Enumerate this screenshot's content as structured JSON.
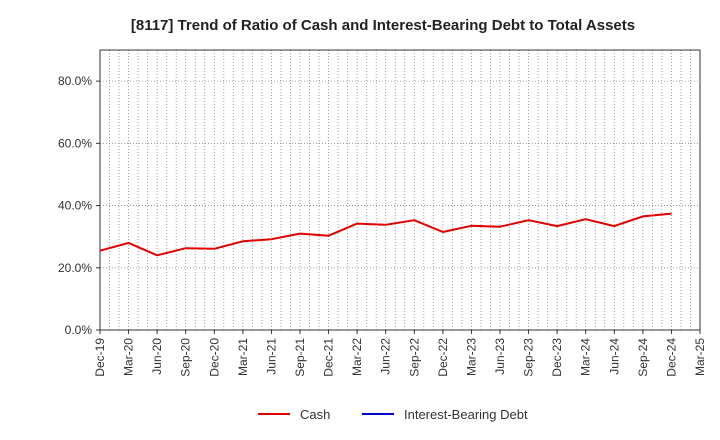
{
  "chart_data": {
    "type": "line",
    "title": "[8117]  Trend of Ratio of Cash and Interest-Bearing Debt to Total Assets",
    "xlabel": "",
    "ylabel": "",
    "ylim": [
      0,
      90
    ],
    "yticks": [
      0,
      20,
      40,
      60,
      80
    ],
    "ytick_labels": [
      "0.0%",
      "20.0%",
      "40.0%",
      "60.0%",
      "80.0%"
    ],
    "categories": [
      "Dec-19",
      "Mar-20",
      "Jun-20",
      "Sep-20",
      "Dec-20",
      "Mar-21",
      "Jun-21",
      "Sep-21",
      "Dec-21",
      "Mar-22",
      "Jun-22",
      "Sep-22",
      "Dec-22",
      "Mar-23",
      "Jun-23",
      "Sep-23",
      "Dec-23",
      "Mar-24",
      "Jun-24",
      "Sep-24",
      "Dec-24",
      "Mar-25"
    ],
    "grid": true,
    "legend_position": "bottom",
    "series": [
      {
        "name": "Cash",
        "color": "#e00000",
        "values": [
          25.5,
          28.0,
          24.0,
          26.3,
          26.1,
          28.5,
          29.2,
          31.0,
          30.3,
          34.2,
          33.8,
          35.3,
          31.5,
          33.5,
          33.2,
          35.3,
          33.4,
          35.6,
          33.4,
          36.5,
          37.4,
          null
        ]
      },
      {
        "name": "Interest-Bearing Debt",
        "color": "#0000cc",
        "values": [
          null,
          null,
          null,
          null,
          null,
          null,
          null,
          null,
          null,
          null,
          null,
          null,
          null,
          null,
          null,
          null,
          null,
          null,
          null,
          null,
          null,
          null
        ]
      }
    ]
  }
}
